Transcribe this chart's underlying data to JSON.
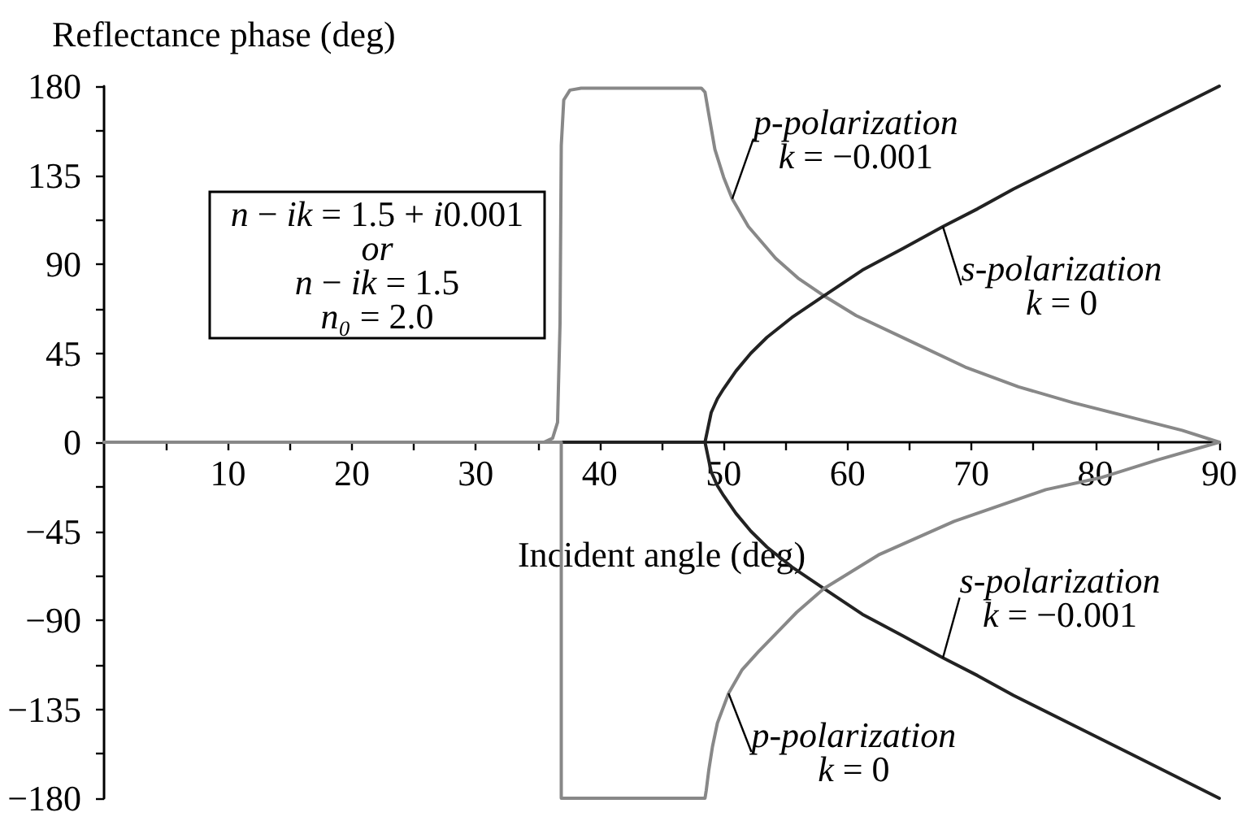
{
  "chart_data": {
    "type": "line",
    "ylabel": "Reflectance phase (deg)",
    "xlabel": "Incident angle (deg)",
    "xlim": [
      0,
      90
    ],
    "xticks": [
      {
        "value": 5,
        "label": null
      },
      10,
      {
        "value": 15,
        "label": null
      },
      20,
      {
        "value": 25,
        "label": null
      },
      30,
      {
        "value": 35,
        "label": null
      },
      40,
      {
        "value": 45,
        "label": null
      },
      50,
      {
        "value": 55,
        "label": null
      },
      60,
      {
        "value": 65,
        "label": null
      },
      70,
      {
        "value": 75,
        "label": null
      },
      80,
      {
        "value": 85,
        "label": null
      },
      90
    ],
    "ylim": [
      -180,
      180
    ],
    "yticks": [
      {
        "value": -180,
        "label": "−180"
      },
      {
        "value": -157.5,
        "label": null
      },
      {
        "value": -135,
        "label": "−135"
      },
      {
        "value": -112.5,
        "label": null
      },
      {
        "value": -90,
        "label": "−90"
      },
      {
        "value": -67.5,
        "label": null
      },
      {
        "value": -45,
        "label": "−45"
      },
      {
        "value": -22.5,
        "label": null
      },
      0,
      {
        "value": 22.5,
        "label": null
      },
      45,
      {
        "value": 67.5,
        "label": null
      },
      90,
      {
        "value": 112.5,
        "label": null
      },
      135,
      {
        "value": 157.5,
        "label": null
      },
      180
    ],
    "annotations": [
      "n − ik = 1.5 + i0.001\nor\nn − ik = 1.5\nn₀ = 2.0"
    ],
    "series": [
      {
        "name": "p-polarization\nk = −0.001",
        "color": "#888888",
        "x": [
          0,
          35.5,
          36.2,
          36.6,
          36.8,
          36.9,
          37.1,
          37.6,
          38.5,
          48.2,
          48.5,
          48.8,
          49.3,
          50,
          50.7,
          52,
          54.2,
          56,
          58.1,
          60.7,
          65.1,
          69.5,
          73.8,
          78.2,
          82.6,
          87,
          90
        ],
        "values": [
          0,
          0,
          2,
          10,
          60,
          150,
          173,
          178,
          179,
          179,
          177,
          166,
          148,
          134,
          123,
          109,
          93,
          83,
          74,
          64,
          51,
          38,
          28,
          20,
          13,
          6,
          0
        ]
      },
      {
        "name": "s-polarization\nk = 0",
        "color": "#222222",
        "x": [
          0,
          48.5,
          48.7,
          49,
          49.5,
          50,
          51,
          52.2,
          53.5,
          55.5,
          58.1,
          61.2,
          64.5,
          67.7,
          70.5,
          73.4,
          78.2,
          83,
          86.5,
          90
        ],
        "values": [
          0,
          0,
          6,
          15,
          22,
          27,
          36,
          45,
          53,
          63,
          74,
          87,
          98,
          109,
          118,
          128,
          143,
          158,
          169,
          180
        ]
      },
      {
        "name": "s-polarization\nk = −0.001",
        "color": "#222222",
        "x": [
          0,
          48.5,
          48.7,
          49,
          49.5,
          50,
          51,
          52.2,
          53.5,
          55.5,
          58.1,
          61.2,
          64.5,
          67.7,
          70.5,
          73.4,
          78.2,
          83,
          86.5,
          90
        ],
        "values": [
          0,
          0,
          -6,
          -15,
          -22,
          -27,
          -36,
          -45,
          -53,
          -63,
          -74,
          -87,
          -98,
          -109,
          -118,
          -128,
          -143,
          -158,
          -169,
          -180
        ]
      },
      {
        "name": "p-polarization\nk = 0",
        "color": "#888888",
        "x": [
          0,
          36.9,
          36.9,
          48.5,
          48.6,
          48.8,
          49.1,
          49.5,
          50.4,
          51.5,
          52.8,
          55.9,
          58.1,
          62.5,
          68.6,
          76,
          80.4,
          85,
          90
        ],
        "values": [
          0,
          0,
          -180,
          -180,
          -176,
          -166,
          -154,
          -142,
          -127,
          -115,
          -106,
          -86,
          -74,
          -57,
          -40,
          -24,
          -18,
          -9,
          0
        ]
      }
    ]
  }
}
